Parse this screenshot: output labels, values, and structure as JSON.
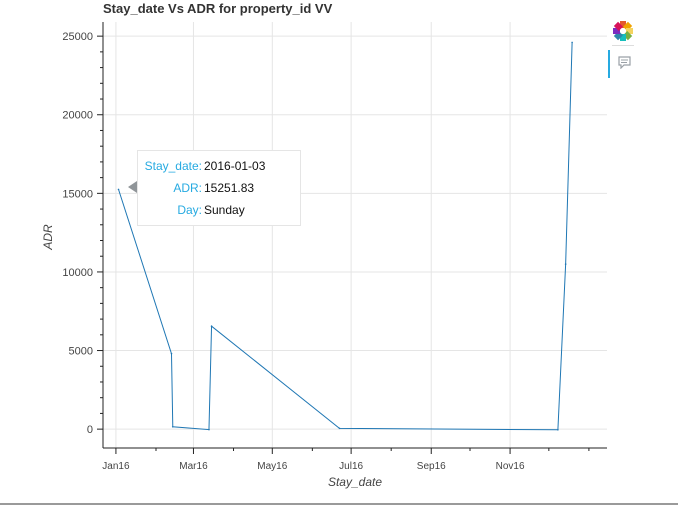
{
  "chart_data": {
    "type": "line",
    "title": "Stay_date Vs ADR for property_id VV",
    "xlabel": "Stay_date",
    "ylabel": "ADR",
    "x_axis_type": "datetime",
    "xlim": [
      "2015-12-22",
      "2017-01-15"
    ],
    "ylim": [
      -1200,
      25900
    ],
    "x_ticks": [
      {
        "date": "2016-01-01",
        "label": "Jan16"
      },
      {
        "date": "2016-03-01",
        "label": "Mar16"
      },
      {
        "date": "2016-05-01",
        "label": "May16"
      },
      {
        "date": "2016-07-01",
        "label": "Jul16"
      },
      {
        "date": "2016-09-01",
        "label": "Sep16"
      },
      {
        "date": "2016-11-01",
        "label": "Nov16"
      }
    ],
    "y_ticks": [
      0,
      5000,
      10000,
      15000,
      20000,
      25000
    ],
    "grid": true,
    "line_color": "#1f77b4",
    "series": [
      {
        "name": "",
        "x": [
          "2016-01-03",
          "2016-02-13",
          "2016-02-14",
          "2016-03-13",
          "2016-03-15",
          "2016-06-22",
          "2016-12-08",
          "2016-12-14",
          "2016-12-19"
        ],
        "y": [
          15251.83,
          4800,
          150,
          -30,
          6550,
          50,
          -40,
          10500,
          24600
        ]
      }
    ]
  },
  "tooltip": {
    "rows": [
      {
        "key": "Stay_date:",
        "value": "2016-01-03"
      },
      {
        "key": "ADR:",
        "value": "15251.83"
      },
      {
        "key": "Day:",
        "value": "Sunday"
      }
    ],
    "anchor": {
      "date": "2016-01-03",
      "y": 15251.83
    }
  },
  "toolbar": {
    "logo_icon": "bokeh-logo-icon",
    "hover_icon": "hover-tool-icon",
    "active_color": "#26aae1"
  }
}
